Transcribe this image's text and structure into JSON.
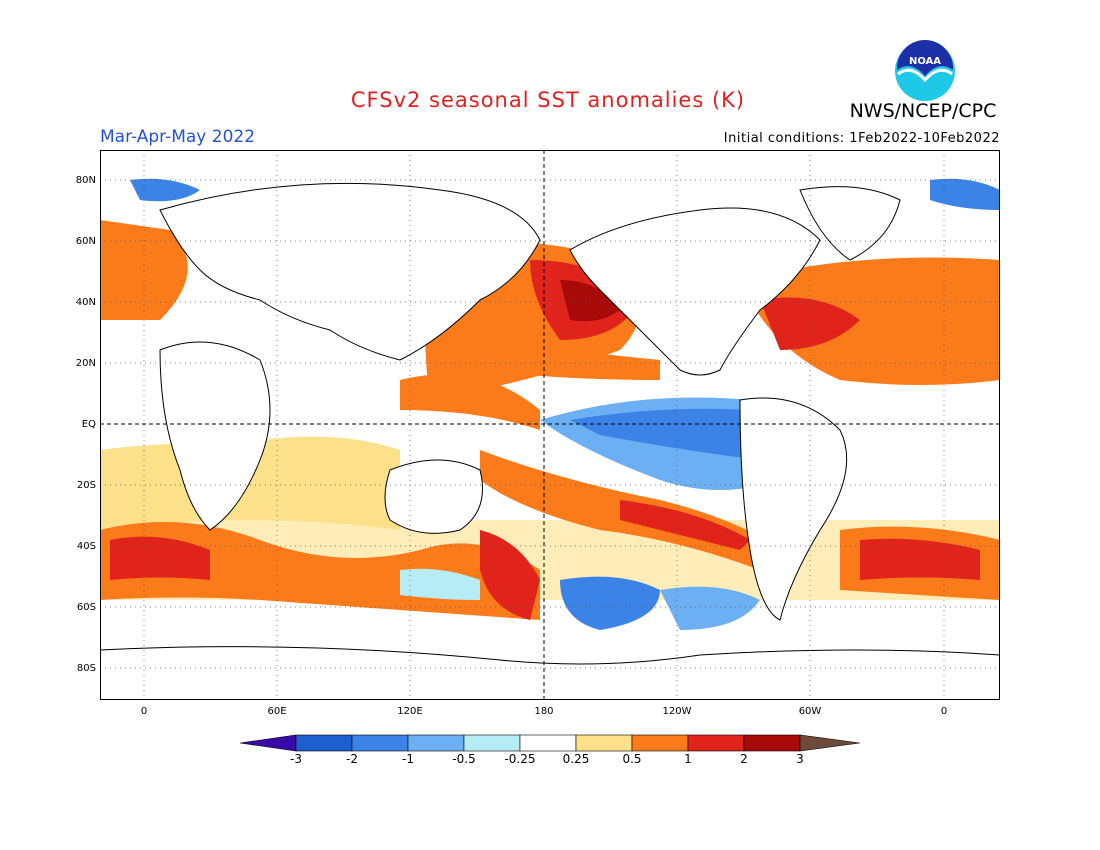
{
  "header": {
    "title": "CFSv2 seasonal SST anomalies (K)",
    "agency": "NWS/NCEP/CPC",
    "logo_text": "NOAA",
    "season": "Mar-Apr-May 2022",
    "initial_conditions": "Initial conditions: 1Feb2022-10Feb2022"
  },
  "axes": {
    "lat_labels": [
      "80N",
      "60N",
      "40N",
      "20N",
      "EQ",
      "20S",
      "40S",
      "60S",
      "80S"
    ],
    "lon_labels": [
      "0",
      "60E",
      "120E",
      "180",
      "120W",
      "60W",
      "0"
    ]
  },
  "colorbar": {
    "labels": [
      "-3",
      "-2",
      "-1",
      "-0.5",
      "-0.25",
      "0.25",
      "0.5",
      "1",
      "2",
      "3"
    ],
    "colors": [
      "#3a0aa8",
      "#1e5fd0",
      "#3b83e6",
      "#6cb0f3",
      "#b6ecf5",
      "#ffffff",
      "#fde08a",
      "#fb7a1a",
      "#e0241b",
      "#a80a0a",
      "#6e4a3a"
    ]
  },
  "map": {
    "land_color": "#ffffff",
    "coast_color": "#000000",
    "grid": "dotted"
  }
}
